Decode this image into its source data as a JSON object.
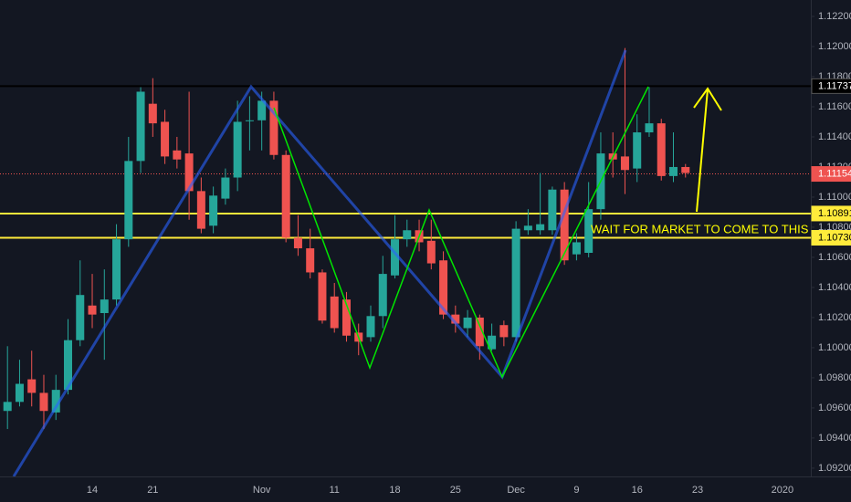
{
  "chart_data": {
    "type": "candlestick",
    "annotation": "WAIT FOR MARKET TO COME TO THIS ZONE",
    "categories": [
      null,
      null,
      null,
      null,
      null,
      null,
      null,
      "14",
      null,
      null,
      null,
      null,
      "21",
      null,
      null,
      null,
      null,
      null,
      null,
      null,
      null,
      "Nov",
      null,
      null,
      null,
      null,
      null,
      "11",
      null,
      null,
      null,
      null,
      "18",
      null,
      null,
      null,
      null,
      "25",
      null,
      null,
      null,
      null,
      "Dec",
      null,
      null,
      null,
      null,
      "9",
      null,
      null,
      null,
      null,
      "16",
      null,
      null,
      null,
      null,
      "23",
      null,
      null,
      null,
      null,
      null,
      null,
      "2020"
    ],
    "open": [
      1.0958,
      1.0964,
      1.0979,
      1.097,
      1.0957,
      1.0972,
      1.1005,
      1.1028,
      1.1023,
      1.1032,
      1.1072,
      1.1124,
      1.1162,
      1.115,
      1.1131,
      1.1129,
      1.1104,
      1.1081,
      1.1099,
      1.1113,
      1.1151,
      1.1151,
      1.1164,
      1.1128,
      1.1073,
      1.1066,
      1.105,
      1.1034,
      1.1032,
      1.101,
      1.1007,
      1.1021,
      1.1048,
      1.1072,
      1.1078,
      1.1071,
      1.1058,
      1.1022,
      1.1013,
      1.102,
      1.0999,
      1.1015,
      1.1007,
      1.1078,
      1.1078,
      1.1078,
      1.1105,
      1.1062,
      1.1063,
      1.1092,
      1.1129,
      1.1127,
      1.1119,
      1.1143,
      1.1149,
      1.1114,
      1.112,
      null,
      null,
      null,
      null,
      null,
      null,
      null,
      null
    ],
    "high": [
      1.1001,
      1.0992,
      1.0998,
      1.0982,
      1.0982,
      1.1019,
      1.1058,
      1.1049,
      1.1052,
      1.1082,
      1.114,
      1.1173,
      1.1179,
      1.1158,
      1.114,
      1.117,
      1.1113,
      1.1107,
      1.1119,
      1.1164,
      1.1167,
      1.117,
      1.117,
      1.1131,
      1.1088,
      1.1079,
      1.1052,
      1.1043,
      1.1037,
      1.1016,
      1.1028,
      1.1061,
      1.1088,
      1.1085,
      1.1085,
      1.1085,
      1.1064,
      1.1028,
      1.1025,
      1.1022,
      1.1016,
      1.1018,
      1.1084,
      1.1092,
      1.1116,
      1.1107,
      1.111,
      1.1076,
      1.111,
      1.1143,
      1.1143,
      1.1199,
      1.1155,
      1.1173,
      1.1152,
      1.1143,
      1.1122,
      null,
      null,
      null,
      null,
      null,
      null,
      null,
      null
    ],
    "low": [
      1.0946,
      1.0961,
      1.0961,
      1.0946,
      1.0952,
      1.0969,
      1.1001,
      1.1013,
      1.0992,
      1.1028,
      1.1067,
      1.1116,
      1.114,
      1.1122,
      1.1119,
      1.1085,
      1.1076,
      1.1076,
      1.1095,
      1.1104,
      1.1131,
      1.1131,
      1.1125,
      1.107,
      1.1061,
      1.1046,
      1.1016,
      1.101,
      1.1004,
      1.0995,
      1.1004,
      1.1013,
      1.1046,
      1.1067,
      1.1064,
      1.1052,
      1.1019,
      1.101,
      1.1007,
      1.0992,
      1.0998,
      1.1001,
      1.1004,
      1.1075,
      1.1075,
      1.1075,
      1.1055,
      1.1058,
      1.106,
      1.1085,
      1.1113,
      1.1102,
      1.111,
      1.114,
      1.1111,
      1.111,
      1.1113,
      null,
      null,
      null,
      null,
      null,
      null,
      null,
      null
    ],
    "close": [
      1.0964,
      1.0976,
      1.097,
      1.0958,
      1.0972,
      1.1005,
      1.1035,
      1.1022,
      1.1032,
      1.1072,
      1.1124,
      1.117,
      1.1149,
      1.1127,
      1.1125,
      1.1104,
      1.1079,
      1.1101,
      1.1113,
      1.115,
      1.1151,
      1.1164,
      1.1128,
      1.1073,
      1.1066,
      1.105,
      1.1018,
      1.1013,
      1.1008,
      1.1004,
      1.1021,
      1.1049,
      1.1072,
      1.1078,
      1.107,
      1.1056,
      1.1022,
      1.1016,
      1.102,
      1.1001,
      1.1008,
      1.1007,
      1.1079,
      1.1081,
      1.1082,
      1.1105,
      1.1058,
      1.107,
      1.1092,
      1.1129,
      1.1125,
      1.1118,
      1.1143,
      1.1149,
      1.1114,
      1.112,
      1.1116,
      null,
      null,
      null,
      null,
      null,
      null,
      null,
      null
    ],
    "up_color": "#26a69a",
    "down_color": "#ef5350",
    "ylim": [
      1.09145,
      1.12309
    ],
    "yticks": [
      {
        "value": 1.122,
        "label": "1.12200"
      },
      {
        "value": 1.12,
        "label": "1.12000"
      },
      {
        "value": 1.118,
        "label": "1.11800"
      },
      {
        "value": 1.116,
        "label": "1.11600"
      },
      {
        "value": 1.114,
        "label": "1.11400"
      },
      {
        "value": 1.112,
        "label": "1.11200"
      },
      {
        "value": 1.11,
        "label": "1.11000"
      },
      {
        "value": 1.108,
        "label": "1.10800"
      },
      {
        "value": 1.106,
        "label": "1.10600"
      },
      {
        "value": 1.104,
        "label": "1.10400"
      },
      {
        "value": 1.102,
        "label": "1.10200"
      },
      {
        "value": 1.1,
        "label": "1.10000"
      },
      {
        "value": 1.098,
        "label": "1.09800"
      },
      {
        "value": 1.096,
        "label": "1.09600"
      },
      {
        "value": 1.094,
        "label": "1.09400"
      },
      {
        "value": 1.092,
        "label": "1.09200"
      }
    ],
    "grid": false,
    "hlines": [
      {
        "value": 1.11737,
        "color": "#000000",
        "text_color": "#ffffff",
        "style": "solid"
      },
      {
        "value": 1.11154,
        "color": "#ef5350",
        "text_color": "#ffffff",
        "style": "dotted"
      },
      {
        "value": 1.10891,
        "color": "#ffeb3b",
        "text_color": "#000000",
        "style": "solid"
      },
      {
        "value": 1.1073,
        "label": "1.10730",
        "color": "#ffeb3b",
        "text_color": "#000000",
        "style": "solid"
      }
    ]
  }
}
